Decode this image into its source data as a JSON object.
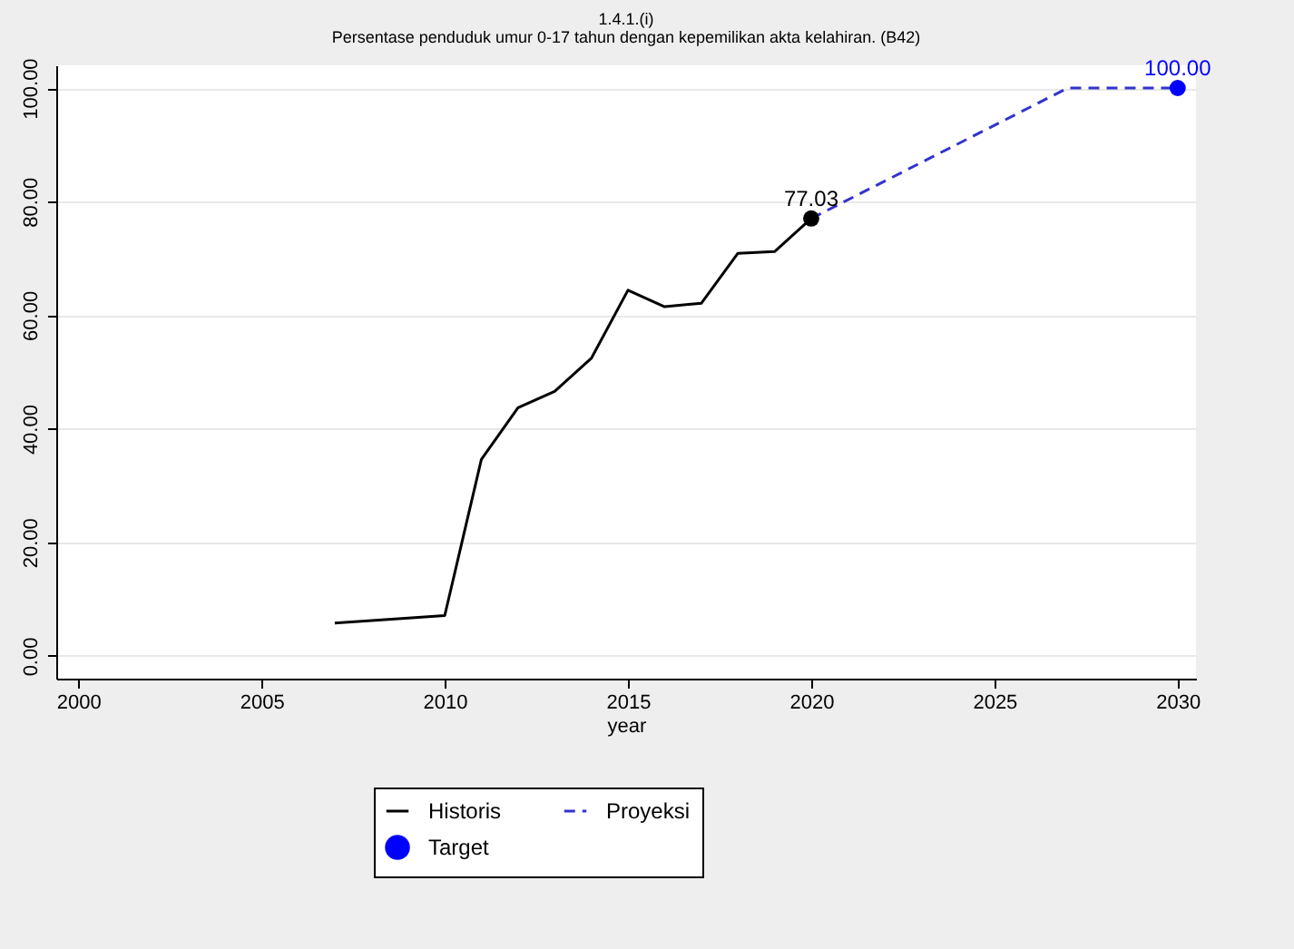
{
  "chart_data": {
    "type": "line",
    "title": "1.4.1.(i)",
    "subtitle": "Persentase penduduk umur 0-17 tahun dengan kepemilikan akta kelahiran. (B42)",
    "xlabel": "year",
    "xlim": [
      1999.4,
      2030.5
    ],
    "xticks": [
      2000,
      2005,
      2010,
      2015,
      2020,
      2025,
      2030
    ],
    "ylim": [
      -4,
      104
    ],
    "yticks": [
      {
        "value": 0,
        "label": "0.00"
      },
      {
        "value": 20,
        "label": "20.00"
      },
      {
        "value": 40,
        "label": "40.00"
      },
      {
        "value": 60,
        "label": "60.00"
      },
      {
        "value": 80,
        "label": "80.00"
      },
      {
        "value": 100,
        "label": "100.00"
      }
    ],
    "grid": "y",
    "legend": "bottom",
    "series": [
      {
        "name": "Historis",
        "type": "line",
        "color": "#000000",
        "line_style": "solid",
        "marker": "none",
        "x": [
          2007,
          2010,
          2011,
          2012,
          2013,
          2014,
          2015,
          2016,
          2017,
          2018,
          2019,
          2020
        ],
        "values": [
          5.8,
          7.1,
          34.6,
          43.7,
          46.6,
          52.4,
          64.4,
          61.5,
          62.1,
          70.9,
          71.2,
          77.03
        ]
      },
      {
        "name": "Proyeksi",
        "type": "line",
        "color": "#3333cc",
        "line_style": "dashed",
        "marker": "none",
        "x": [
          2020,
          2027,
          2030
        ],
        "values": [
          77.03,
          100,
          100
        ]
      },
      {
        "type": "scatter",
        "color": "#000000",
        "marker": "circle",
        "x": [
          2020
        ],
        "values": [
          77.03
        ],
        "value_labels": [
          "77.03"
        ]
      },
      {
        "name": "Target",
        "type": "scatter",
        "color": "#0000ff",
        "marker": "circle",
        "x": [
          2030
        ],
        "values": [
          100
        ],
        "value_labels": [
          "100.00"
        ]
      }
    ]
  }
}
